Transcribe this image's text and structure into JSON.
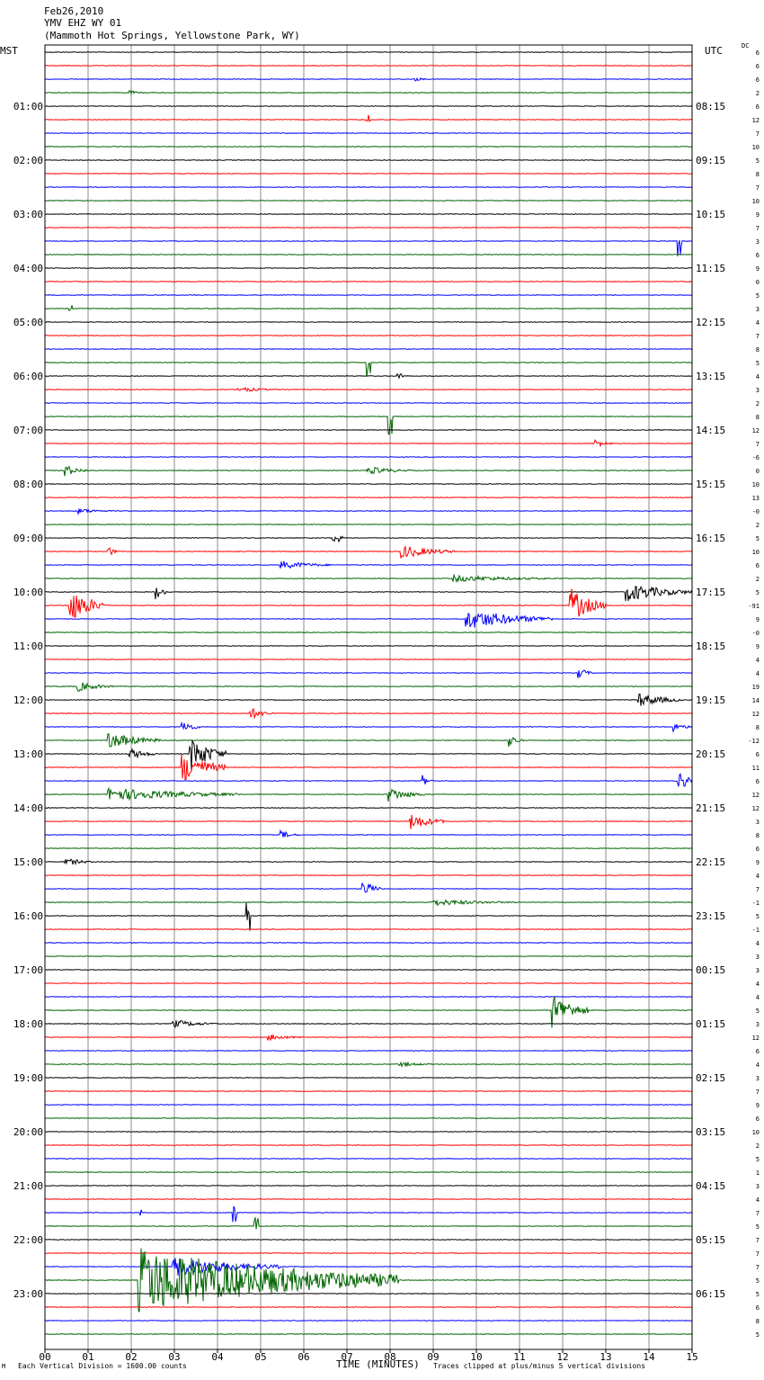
{
  "header": {
    "date": "Feb26,2010",
    "station": "YMV EHZ WY 01",
    "location": "(Mammoth Hot Springs, Yellowstone Park, WY)"
  },
  "left_axis_title": "MST",
  "right_axis_title": "UTC",
  "dc_title": "DC",
  "footer": {
    "left": "Each Vertical Division = 1600.00 counts",
    "center": "TIME (MINUTES)",
    "right": "Traces clipped at plus/minus 5 vertical divisions",
    "corner": "M"
  },
  "colors": {
    "trace_cycle": [
      "#000000",
      "#ff0000",
      "#0000ff",
      "#006400"
    ],
    "grid": "#8c8c8c",
    "frame": "#000000"
  },
  "chart_data": {
    "type": "line",
    "title": "YMV EHZ WY 01",
    "xlabel": "TIME (MINUTES)",
    "xlim": [
      0,
      15
    ],
    "x_ticks": [
      "00",
      "01",
      "02",
      "03",
      "04",
      "05",
      "06",
      "07",
      "08",
      "09",
      "10",
      "11",
      "12",
      "13",
      "14",
      "15"
    ],
    "traces_per_hour": 4,
    "minutes_per_trace": 15,
    "hour_labels_mst": [
      "01:00",
      "02:00",
      "03:00",
      "04:00",
      "05:00",
      "06:00",
      "07:00",
      "08:00",
      "09:00",
      "10:00",
      "11:00",
      "12:00",
      "13:00",
      "14:00",
      "15:00",
      "16:00",
      "17:00",
      "18:00",
      "19:00",
      "20:00",
      "21:00",
      "22:00",
      "23:00"
    ],
    "hour_labels_utc": [
      "08:15",
      "09:15",
      "10:15",
      "11:15",
      "12:15",
      "13:15",
      "14:15",
      "15:15",
      "16:15",
      "17:15",
      "18:15",
      "19:15",
      "20:15",
      "21:15",
      "22:15",
      "23:15",
      "00:15",
      "01:15",
      "02:15",
      "03:15",
      "04:15",
      "05:15",
      "06:15"
    ],
    "dc_offsets": [
      "6",
      "6",
      "6",
      "2",
      "6",
      "12",
      "7",
      "10",
      "5",
      "8",
      "7",
      "10",
      "9",
      "7",
      "3",
      "6",
      "9",
      "0",
      "5",
      "3",
      "4",
      "7",
      "8",
      "5",
      "4",
      "3",
      "2",
      "8",
      "12",
      "7",
      "-6",
      "0",
      "10",
      "13",
      "-0",
      "2",
      "5",
      "10",
      "6",
      "2",
      "5",
      "-91",
      "9",
      "-0",
      "9",
      "4",
      "4",
      "19",
      "14",
      "12",
      "8",
      "-12",
      "6",
      "11",
      "6",
      "12",
      "12",
      "3",
      "8",
      "6",
      "9",
      "4",
      "7",
      "-1",
      "5",
      "-1",
      "4",
      "3",
      "3",
      "4",
      "4",
      "5",
      "3",
      "12",
      "6",
      "4",
      "3",
      "7",
      "9",
      "6",
      "10",
      "2",
      "5",
      "1",
      "3",
      "4",
      "7",
      "5",
      "7",
      "7",
      "7",
      "5",
      "5",
      "6",
      "8",
      "5"
    ],
    "events": [
      {
        "trace": 2,
        "minute": 8.6,
        "amp": 0.3,
        "dur": 0.3
      },
      {
        "trace": 3,
        "minute": 2.0,
        "amp": 0.3,
        "dur": 0.3
      },
      {
        "trace": 5,
        "minute": 7.5,
        "amp": 0.8,
        "dur": 0.05
      },
      {
        "trace": 14,
        "minute": 14.7,
        "amp": 3.2,
        "dur": 0.05
      },
      {
        "trace": 19,
        "minute": 0.6,
        "amp": 0.5,
        "dur": 0.05
      },
      {
        "trace": 23,
        "minute": 7.5,
        "amp": 3.0,
        "dur": 0.05
      },
      {
        "trace": 24,
        "minute": 8.2,
        "amp": 0.5,
        "dur": 0.1
      },
      {
        "trace": 25,
        "minute": 4.5,
        "amp": 0.4,
        "dur": 1.0
      },
      {
        "trace": 27,
        "minute": 8.0,
        "amp": 3.5,
        "dur": 0.05
      },
      {
        "trace": 29,
        "minute": 12.8,
        "amp": 0.6,
        "dur": 0.4
      },
      {
        "trace": 31,
        "minute": 0.5,
        "amp": 0.8,
        "dur": 0.5
      },
      {
        "trace": 31,
        "minute": 7.5,
        "amp": 0.6,
        "dur": 1.0
      },
      {
        "trace": 34,
        "minute": 0.8,
        "amp": 0.4,
        "dur": 0.8
      },
      {
        "trace": 36,
        "minute": 6.7,
        "amp": 1.6,
        "dur": 0.2
      },
      {
        "trace": 37,
        "minute": 8.3,
        "amp": 1.0,
        "dur": 1.2
      },
      {
        "trace": 37,
        "minute": 1.5,
        "amp": 0.7,
        "dur": 0.2
      },
      {
        "trace": 38,
        "minute": 5.5,
        "amp": 0.6,
        "dur": 1.2
      },
      {
        "trace": 39,
        "minute": 9.5,
        "amp": 0.5,
        "dur": 2.5
      },
      {
        "trace": 40,
        "minute": 13.5,
        "amp": 1.4,
        "dur": 1.5
      },
      {
        "trace": 40,
        "minute": 2.6,
        "amp": 0.9,
        "dur": 0.3
      },
      {
        "trace": 41,
        "minute": 0.6,
        "amp": 2.5,
        "dur": 0.8
      },
      {
        "trace": 41,
        "minute": 12.2,
        "amp": 2.5,
        "dur": 0.8
      },
      {
        "trace": 42,
        "minute": 9.8,
        "amp": 1.5,
        "dur": 2.0
      },
      {
        "trace": 46,
        "minute": 12.4,
        "amp": 0.8,
        "dur": 0.3
      },
      {
        "trace": 47,
        "minute": 0.8,
        "amp": 0.7,
        "dur": 0.8
      },
      {
        "trace": 48,
        "minute": 13.8,
        "amp": 1.0,
        "dur": 1.0
      },
      {
        "trace": 49,
        "minute": 4.8,
        "amp": 0.8,
        "dur": 0.5
      },
      {
        "trace": 50,
        "minute": 3.2,
        "amp": 1.0,
        "dur": 0.4
      },
      {
        "trace": 50,
        "minute": 14.6,
        "amp": 0.6,
        "dur": 0.4
      },
      {
        "trace": 51,
        "minute": 1.5,
        "amp": 1.2,
        "dur": 1.2
      },
      {
        "trace": 51,
        "minute": 10.8,
        "amp": 0.8,
        "dur": 0.3
      },
      {
        "trace": 52,
        "minute": 3.4,
        "amp": 2.5,
        "dur": 0.8
      },
      {
        "trace": 52,
        "minute": 2.0,
        "amp": 0.8,
        "dur": 0.6
      },
      {
        "trace": 53,
        "minute": 3.2,
        "amp": 2.2,
        "dur": 1.0
      },
      {
        "trace": 54,
        "minute": 14.7,
        "amp": 1.8,
        "dur": 0.3
      },
      {
        "trace": 54,
        "minute": 8.8,
        "amp": 0.6,
        "dur": 0.2
      },
      {
        "trace": 55,
        "minute": 1.5,
        "amp": 1.0,
        "dur": 3.0
      },
      {
        "trace": 55,
        "minute": 8.0,
        "amp": 1.0,
        "dur": 0.8
      },
      {
        "trace": 57,
        "minute": 8.5,
        "amp": 1.2,
        "dur": 0.8
      },
      {
        "trace": 58,
        "minute": 5.5,
        "amp": 0.6,
        "dur": 0.4
      },
      {
        "trace": 60,
        "minute": 0.5,
        "amp": 0.6,
        "dur": 0.6
      },
      {
        "trace": 62,
        "minute": 7.4,
        "amp": 1.2,
        "dur": 0.4
      },
      {
        "trace": 63,
        "minute": 9.0,
        "amp": 0.5,
        "dur": 2.0
      },
      {
        "trace": 64,
        "minute": 4.7,
        "amp": 3.5,
        "dur": 0.05
      },
      {
        "trace": 71,
        "minute": 11.8,
        "amp": 2.4,
        "dur": 0.8
      },
      {
        "trace": 72,
        "minute": 3.0,
        "amp": 0.6,
        "dur": 1.0
      },
      {
        "trace": 73,
        "minute": 5.2,
        "amp": 0.5,
        "dur": 0.8
      },
      {
        "trace": 75,
        "minute": 8.2,
        "amp": 0.4,
        "dur": 0.8
      },
      {
        "trace": 86,
        "minute": 4.4,
        "amp": 1.6,
        "dur": 0.05
      },
      {
        "trace": 86,
        "minute": 2.2,
        "amp": 0.5,
        "dur": 0.05
      },
      {
        "trace": 87,
        "minute": 4.9,
        "amp": 1.5,
        "dur": 0.05
      },
      {
        "trace": 91,
        "minute": 2.2,
        "amp": 5.0,
        "dur": 6.0
      },
      {
        "trace": 90,
        "minute": 3.0,
        "amp": 1.5,
        "dur": 2.5
      }
    ]
  }
}
